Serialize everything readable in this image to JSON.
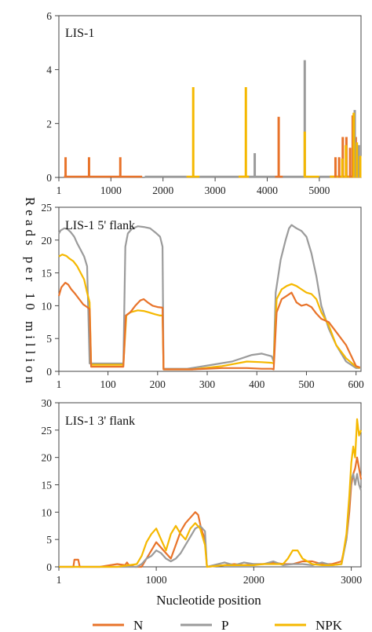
{
  "figure": {
    "ylabel": "Reads per 10 million",
    "xlabel": "Nucleotide position",
    "legend": [
      {
        "label": "N",
        "color": "#e8732a"
      },
      {
        "label": "P",
        "color": "#9b9b9b"
      },
      {
        "label": "NPK",
        "color": "#f5b800"
      }
    ]
  },
  "chart_data": [
    {
      "type": "bar",
      "title": "LIS-1",
      "xlim": [
        1,
        5800
      ],
      "ylim": [
        0,
        6
      ],
      "xticks": [
        1,
        1000,
        2000,
        3000,
        4000,
        5000
      ],
      "xtick_labels": [
        "1",
        "1000",
        "2000",
        "3000",
        "4000",
        "5000"
      ],
      "yticks": [
        0,
        2,
        4,
        6
      ],
      "baseline_segments": [
        {
          "name": "N",
          "x": [
            [
              100,
              1600
            ],
            [
              3450,
              3650
            ],
            [
              4150,
              4300
            ],
            [
              5200,
              5800
            ]
          ]
        },
        {
          "name": "NPK",
          "x": [
            [
              2450,
              2700
            ],
            [
              3450,
              3650
            ],
            [
              4700,
              5000
            ],
            [
              5200,
              5800
            ]
          ]
        },
        {
          "name": "P",
          "x": [
            [
              1650,
              2450
            ],
            [
              2700,
              3450
            ],
            [
              3650,
              4150
            ],
            [
              4300,
              4700
            ],
            [
              5000,
              5200
            ]
          ]
        }
      ],
      "series": [
        {
          "name": "N",
          "bars": [
            [
              130,
              0.75
            ],
            [
              580,
              0.75
            ],
            [
              1180,
              0.75
            ],
            [
              4220,
              2.25
            ],
            [
              5310,
              0.75
            ],
            [
              5380,
              0.75
            ],
            [
              5450,
              1.5
            ],
            [
              5520,
              1.5
            ],
            [
              5590,
              1.1
            ],
            [
              5640,
              2.3
            ],
            [
              5700,
              1.5
            ],
            [
              5770,
              0.75
            ]
          ]
        },
        {
          "name": "P",
          "bars": [
            [
              3760,
              0.9
            ],
            [
              4720,
              4.35
            ],
            [
              5680,
              2.5
            ],
            [
              5760,
              1.2
            ]
          ]
        },
        {
          "name": "NPK",
          "bars": [
            [
              2580,
              3.35
            ],
            [
              3590,
              3.35
            ],
            [
              4720,
              1.7
            ],
            [
              5440,
              0.7
            ],
            [
              5510,
              1.2
            ],
            [
              5660,
              2.4
            ],
            [
              5720,
              1.3
            ],
            [
              5785,
              0.8
            ]
          ]
        }
      ]
    },
    {
      "type": "line",
      "title": "LIS-1 5' flank",
      "xlim": [
        1,
        610
      ],
      "ylim": [
        0,
        25
      ],
      "xticks": [
        1,
        100,
        200,
        300,
        400,
        500,
        600
      ],
      "xtick_labels": [
        "1",
        "100",
        "200",
        "300",
        "400",
        "500",
        "600"
      ],
      "yticks": [
        0,
        5,
        10,
        15,
        20,
        25
      ],
      "series": [
        {
          "name": "P",
          "x": [
            1,
            5,
            12,
            18,
            25,
            32,
            38,
            45,
            52,
            58,
            63,
            66,
            90,
            122,
            127,
            131,
            135,
            140,
            148,
            160,
            172,
            185,
            198,
            205,
            210,
            212,
            260,
            350,
            390,
            410,
            430,
            434,
            438,
            448,
            458,
            465,
            470,
            480,
            490,
            500,
            510,
            520,
            530,
            545,
            560,
            580,
            600,
            608
          ],
          "y": [
            21,
            21.5,
            21.8,
            21.7,
            21.2,
            20.5,
            19.5,
            18.5,
            17.5,
            16,
            1.2,
            1.2,
            1.2,
            1.2,
            1.2,
            1.2,
            19,
            21,
            21.7,
            22.1,
            22,
            21.8,
            21,
            20.5,
            19,
            0.4,
            0.4,
            1.5,
            2.5,
            2.7,
            2.3,
            1.5,
            12,
            17,
            20,
            21.8,
            22.3,
            21.8,
            21.4,
            20.5,
            18,
            14.5,
            10,
            6.5,
            4,
            1.5,
            0.5,
            0.5
          ]
        },
        {
          "name": "NPK",
          "x": [
            1,
            8,
            16,
            22,
            30,
            38,
            45,
            52,
            58,
            63,
            66,
            90,
            120,
            131,
            137,
            145,
            160,
            172,
            182,
            195,
            205,
            210,
            212,
            270,
            330,
            380,
            410,
            430,
            434,
            440,
            450,
            460,
            470,
            480,
            490,
            500,
            510,
            520,
            530,
            545,
            560,
            580,
            600,
            608
          ],
          "y": [
            17.5,
            17.8,
            17.6,
            17.2,
            16.8,
            16,
            15,
            14,
            12,
            10.5,
            1,
            1,
            1,
            1,
            8.5,
            9,
            9.3,
            9.2,
            9,
            8.7,
            8.5,
            8.5,
            0.3,
            0.3,
            0.8,
            1.5,
            1.4,
            1.3,
            1.2,
            11,
            12.5,
            13,
            13.3,
            13,
            12.5,
            12,
            11.8,
            11,
            9,
            7,
            4,
            2,
            0.7,
            0.5
          ]
        },
        {
          "name": "N",
          "x": [
            1,
            6,
            14,
            20,
            26,
            34,
            42,
            50,
            58,
            63,
            66,
            90,
            120,
            131,
            136,
            145,
            155,
            165,
            172,
            180,
            190,
            200,
            210,
            212,
            270,
            330,
            380,
            410,
            430,
            434,
            440,
            450,
            460,
            470,
            480,
            490,
            500,
            510,
            520,
            530,
            545,
            560,
            580,
            600,
            608
          ],
          "y": [
            11.5,
            12.8,
            13.5,
            13.2,
            12.5,
            11.8,
            11,
            10.2,
            9.8,
            9.5,
            0.7,
            0.7,
            0.7,
            0.7,
            8.5,
            9,
            10,
            10.8,
            11,
            10.5,
            10,
            9.8,
            9.7,
            0.3,
            0.3,
            0.5,
            0.5,
            0.4,
            0.4,
            0.3,
            9,
            11,
            11.5,
            12,
            10.5,
            10,
            10.2,
            9.8,
            8.8,
            8,
            7.5,
            6,
            4,
            0.8,
            0.6
          ]
        }
      ]
    },
    {
      "type": "line",
      "title": "LIS-1 3' flank",
      "xlim": [
        1,
        3100
      ],
      "ylim": [
        0,
        30
      ],
      "xticks": [
        1,
        1000,
        2000,
        3000
      ],
      "xtick_labels": [
        "1",
        "1000",
        "2000",
        "3000"
      ],
      "yticks": [
        0,
        5,
        10,
        15,
        20,
        25,
        30
      ],
      "series": [
        {
          "name": "N",
          "x": [
            1,
            150,
            160,
            200,
            215,
            420,
            600,
            680,
            700,
            720,
            780,
            850,
            900,
            950,
            1000,
            1050,
            1100,
            1150,
            1200,
            1250,
            1300,
            1350,
            1400,
            1430,
            1460,
            1500,
            1520,
            1700,
            1800,
            1900,
            2000,
            2100,
            2200,
            2300,
            2400,
            2500,
            2600,
            2700,
            2800,
            2900,
            2950,
            2980,
            3000,
            3020,
            3040,
            3060,
            3080,
            3100
          ],
          "y": [
            0,
            0,
            1.3,
            1.3,
            0,
            0,
            0.5,
            0.3,
            0.8,
            0.3,
            0,
            0,
            1.5,
            3,
            4.5,
            3.5,
            2.5,
            1.5,
            4,
            6.5,
            8,
            9,
            10,
            9.5,
            7,
            5,
            0,
            0.3,
            0.5,
            0.3,
            0.5,
            0.5,
            0.8,
            0.5,
            0.5,
            1,
            1,
            0.5,
            0.5,
            1,
            5,
            10,
            15,
            17,
            18,
            20,
            18,
            16
          ]
        },
        {
          "name": "P",
          "x": [
            1,
            600,
            800,
            850,
            900,
            950,
            1000,
            1050,
            1100,
            1150,
            1200,
            1250,
            1300,
            1350,
            1400,
            1450,
            1500,
            1520,
            1700,
            1800,
            1900,
            2000,
            2100,
            2200,
            2300,
            2400,
            2500,
            2600,
            2700,
            2800,
            2900,
            2950,
            2980,
            3000,
            3020,
            3040,
            3060,
            3080,
            3100
          ],
          "y": [
            0,
            0,
            0,
            0.5,
            1.5,
            2,
            3,
            2.5,
            1.5,
            1,
            1.5,
            2.5,
            4,
            5.5,
            7,
            7.5,
            6.5,
            0,
            0.8,
            0.3,
            0.8,
            0.5,
            0.5,
            1,
            0.3,
            0.5,
            0.5,
            0.3,
            0.8,
            0.3,
            0.5,
            5,
            12,
            16,
            17,
            15,
            17,
            15,
            14
          ]
        },
        {
          "name": "NPK",
          "x": [
            1,
            600,
            800,
            850,
            900,
            950,
            1000,
            1050,
            1100,
            1150,
            1200,
            1250,
            1300,
            1350,
            1400,
            1450,
            1500,
            1520,
            1700,
            1800,
            1900,
            2000,
            2100,
            2200,
            2300,
            2350,
            2400,
            2450,
            2500,
            2550,
            2600,
            2700,
            2800,
            2900,
            2950,
            2980,
            3000,
            3020,
            3040,
            3060,
            3080,
            3100
          ],
          "y": [
            0,
            0,
            0.5,
            2,
            4.5,
            6,
            7,
            5,
            3,
            6,
            7.5,
            6,
            5,
            7,
            8,
            7,
            4,
            0,
            0.3,
            0.3,
            0.3,
            0.3,
            0.5,
            0.5,
            0.5,
            1.5,
            3,
            3,
            1.5,
            1,
            0.5,
            0.3,
            0.3,
            0.5,
            6,
            13,
            19,
            22,
            20,
            27,
            24,
            25
          ]
        }
      ]
    }
  ]
}
